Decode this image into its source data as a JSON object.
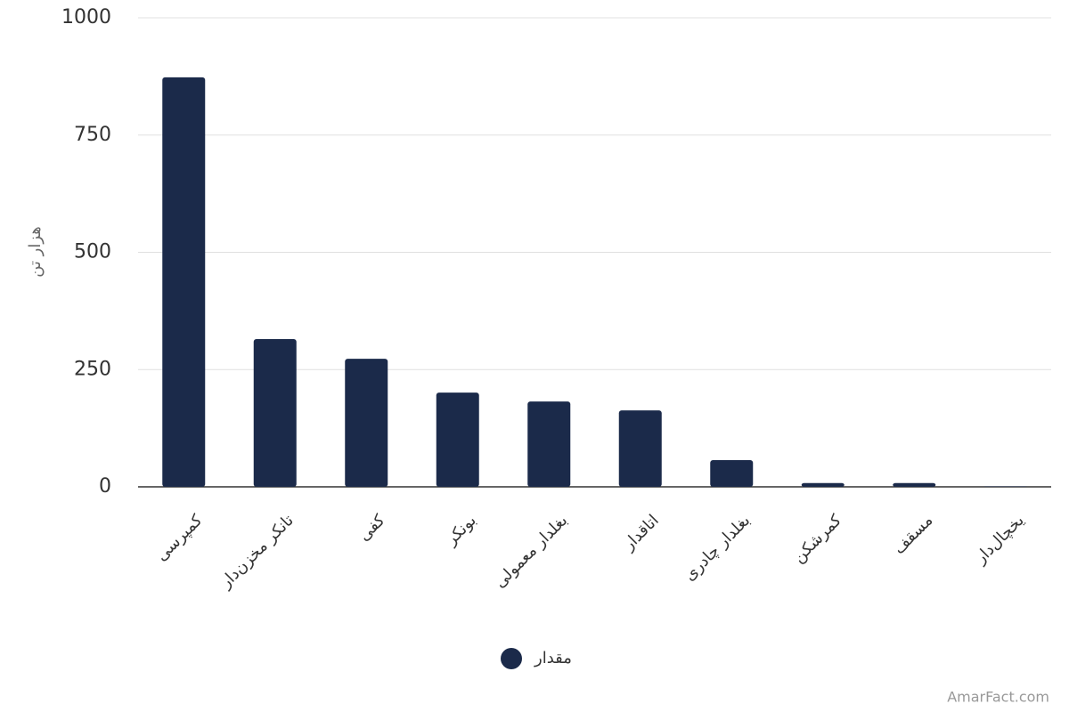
{
  "chart_data": {
    "type": "bar",
    "y_label": "هزار تن",
    "categories": [
      "کمپرسی",
      "تانکر مخزن‌دار",
      "کفی",
      "بونکر",
      "بغلدار معمولی",
      "اتاقدار",
      "بغلدار چادری",
      "کمرشکن",
      "مسقف",
      "یخچال‌دار"
    ],
    "series": [
      {
        "name": "مقدار",
        "color": "#1b2a4a",
        "values": [
          873,
          315,
          273,
          201,
          182,
          163,
          57,
          8,
          8,
          1
        ]
      }
    ],
    "ylim": [
      0,
      1000
    ],
    "yticks": [
      0,
      250,
      500,
      750,
      1000
    ],
    "grid": true,
    "watermark": "AmarFact.com"
  }
}
